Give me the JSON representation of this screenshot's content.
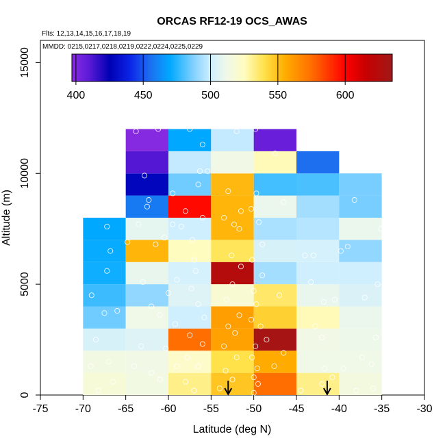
{
  "chart_data": {
    "type": "heatmap",
    "title": "ORCAS RF12-19 OCS_AWAS",
    "flights_label": "Flts: 12,13,14,15,16,17,18,19",
    "mmdd_label": "MMDD: 0215,0217,0218,0219,0222,0224,0225,0229",
    "xlabel": "Latitude (deg N)",
    "ylabel": "Altitude (m)",
    "xlim": [
      -75,
      -30
    ],
    "ylim": [
      0,
      16000
    ],
    "xticks": [
      -75,
      -70,
      -65,
      -60,
      -55,
      -50,
      -45,
      -40,
      -35,
      -30
    ],
    "yticks": [
      0,
      5000,
      10000,
      15000
    ],
    "lat_bins": [
      -70,
      -65,
      -60,
      -55,
      -50,
      -45,
      -40,
      -35
    ],
    "alt_bin_size": 1000,
    "colorbar": {
      "range": [
        397,
        635
      ],
      "ticks": [
        400,
        450,
        500,
        550,
        600
      ],
      "stops": [
        {
          "v": 397,
          "c": "#8a2be2"
        },
        {
          "v": 410,
          "c": "#5a1ad6"
        },
        {
          "v": 425,
          "c": "#0000b3"
        },
        {
          "v": 440,
          "c": "#0a24e6"
        },
        {
          "v": 455,
          "c": "#1e6ef0"
        },
        {
          "v": 470,
          "c": "#00a9ff"
        },
        {
          "v": 487,
          "c": "#7fd0ff"
        },
        {
          "v": 500,
          "c": "#cfefff"
        },
        {
          "v": 512,
          "c": "#f0f8e8"
        },
        {
          "v": 525,
          "c": "#fffcc0"
        },
        {
          "v": 540,
          "c": "#ffe14a"
        },
        {
          "v": 555,
          "c": "#ffae00"
        },
        {
          "v": 575,
          "c": "#ff6e00"
        },
        {
          "v": 600,
          "c": "#ff0000"
        },
        {
          "v": 615,
          "c": "#c80000"
        },
        {
          "v": 635,
          "c": "#a01818"
        }
      ]
    },
    "cells": [
      {
        "lat": -70,
        "alt": 0,
        "value": 518
      },
      {
        "lat": -70,
        "alt": 1000,
        "value": 514
      },
      {
        "lat": -70,
        "alt": 2000,
        "value": 503
      },
      {
        "lat": -70,
        "alt": 3000,
        "value": 485
      },
      {
        "lat": -70,
        "alt": 4000,
        "value": 478
      },
      {
        "lat": -70,
        "alt": 5000,
        "value": 472
      },
      {
        "lat": -70,
        "alt": 6000,
        "value": 471
      },
      {
        "lat": -70,
        "alt": 7000,
        "value": 470
      },
      {
        "lat": -65,
        "alt": 0,
        "value": 514
      },
      {
        "lat": -65,
        "alt": 1000,
        "value": 513
      },
      {
        "lat": -65,
        "alt": 2000,
        "value": 505
      },
      {
        "lat": -65,
        "alt": 3000,
        "value": 512
      },
      {
        "lat": -65,
        "alt": 4000,
        "value": 490
      },
      {
        "lat": -65,
        "alt": 5000,
        "value": 509
      },
      {
        "lat": -65,
        "alt": 6000,
        "value": 553
      },
      {
        "lat": -65,
        "alt": 7000,
        "value": 508
      },
      {
        "lat": -65,
        "alt": 8000,
        "value": 458
      },
      {
        "lat": -65,
        "alt": 9000,
        "value": 428
      },
      {
        "lat": -65,
        "alt": 10000,
        "value": 411
      },
      {
        "lat": -65,
        "alt": 11000,
        "value": 398
      },
      {
        "lat": -60,
        "alt": 0,
        "value": 532
      },
      {
        "lat": -60,
        "alt": 1000,
        "value": 522
      },
      {
        "lat": -60,
        "alt": 2000,
        "value": 575
      },
      {
        "lat": -60,
        "alt": 3000,
        "value": 500
      },
      {
        "lat": -60,
        "alt": 4000,
        "value": 505
      },
      {
        "lat": -60,
        "alt": 5000,
        "value": 502
      },
      {
        "lat": -60,
        "alt": 6000,
        "value": 525
      },
      {
        "lat": -60,
        "alt": 7000,
        "value": 500
      },
      {
        "lat": -60,
        "alt": 8000,
        "value": 598
      },
      {
        "lat": -60,
        "alt": 9000,
        "value": 485
      },
      {
        "lat": -60,
        "alt": 10000,
        "value": 498
      },
      {
        "lat": -60,
        "alt": 11000,
        "value": 470
      },
      {
        "lat": -55,
        "alt": 0,
        "value": 548
      },
      {
        "lat": -55,
        "alt": 1000,
        "value": 540
      },
      {
        "lat": -55,
        "alt": 2000,
        "value": 559
      },
      {
        "lat": -55,
        "alt": 3000,
        "value": 560
      },
      {
        "lat": -55,
        "alt": 4000,
        "value": 519
      },
      {
        "lat": -55,
        "alt": 5000,
        "value": 625
      },
      {
        "lat": -55,
        "alt": 6000,
        "value": 538
      },
      {
        "lat": -55,
        "alt": 7000,
        "value": 553
      },
      {
        "lat": -55,
        "alt": 8000,
        "value": 553
      },
      {
        "lat": -55,
        "alt": 9000,
        "value": 552
      },
      {
        "lat": -55,
        "alt": 10000,
        "value": 513
      },
      {
        "lat": -55,
        "alt": 11000,
        "value": 498
      },
      {
        "lat": -50,
        "alt": 0,
        "value": 575
      },
      {
        "lat": -50,
        "alt": 1000,
        "value": 556
      },
      {
        "lat": -50,
        "alt": 2000,
        "value": 632
      },
      {
        "lat": -50,
        "alt": 3000,
        "value": 545
      },
      {
        "lat": -50,
        "alt": 4000,
        "value": 536
      },
      {
        "lat": -50,
        "alt": 5000,
        "value": 493
      },
      {
        "lat": -50,
        "alt": 6000,
        "value": 503
      },
      {
        "lat": -50,
        "alt": 7000,
        "value": 494
      },
      {
        "lat": -50,
        "alt": 8000,
        "value": 510
      },
      {
        "lat": -50,
        "alt": 9000,
        "value": 479
      },
      {
        "lat": -50,
        "alt": 10000,
        "value": 526
      },
      {
        "lat": -50,
        "alt": 11000,
        "value": 406
      },
      {
        "lat": -45,
        "alt": 0,
        "value": 532
      },
      {
        "lat": -45,
        "alt": 1000,
        "value": 512
      },
      {
        "lat": -45,
        "alt": 2000,
        "value": 513
      },
      {
        "lat": -45,
        "alt": 3000,
        "value": 526
      },
      {
        "lat": -45,
        "alt": 4000,
        "value": 509
      },
      {
        "lat": -45,
        "alt": 5000,
        "value": 500
      },
      {
        "lat": -45,
        "alt": 6000,
        "value": 502
      },
      {
        "lat": -45,
        "alt": 7000,
        "value": 496
      },
      {
        "lat": -45,
        "alt": 8000,
        "value": 493
      },
      {
        "lat": -45,
        "alt": 9000,
        "value": 480
      },
      {
        "lat": -45,
        "alt": 10000,
        "value": 455
      },
      {
        "lat": -40,
        "alt": 0,
        "value": 515
      },
      {
        "lat": -40,
        "alt": 1000,
        "value": 512
      },
      {
        "lat": -40,
        "alt": 2000,
        "value": 511
      },
      {
        "lat": -40,
        "alt": 3000,
        "value": 510
      },
      {
        "lat": -40,
        "alt": 4000,
        "value": 504
      },
      {
        "lat": -40,
        "alt": 5000,
        "value": 500
      },
      {
        "lat": -40,
        "alt": 6000,
        "value": 490
      },
      {
        "lat": -40,
        "alt": 7000,
        "value": 510
      },
      {
        "lat": -40,
        "alt": 8000,
        "value": 486
      },
      {
        "lat": -40,
        "alt": 9000,
        "value": 486
      }
    ],
    "samples": [
      [
        -68.2,
        200
      ],
      [
        -66.5,
        600
      ],
      [
        -69.1,
        1300
      ],
      [
        -67.0,
        1500
      ],
      [
        -68.5,
        2500
      ],
      [
        -66.0,
        3800
      ],
      [
        -67.5,
        3700
      ],
      [
        -69.0,
        4500
      ],
      [
        -67.2,
        5600
      ],
      [
        -66.8,
        6500
      ],
      [
        -67.2,
        7600
      ],
      [
        -64.0,
        1300
      ],
      [
        -63.2,
        2200
      ],
      [
        -62.0,
        4000
      ],
      [
        -63.0,
        5100
      ],
      [
        -64.8,
        6900
      ],
      [
        -63.5,
        7700
      ],
      [
        -62.5,
        8500
      ],
      [
        -62.3,
        8800
      ],
      [
        -62.8,
        9900
      ],
      [
        -63.8,
        11900
      ],
      [
        -61.2,
        12000
      ],
      [
        -61.0,
        700
      ],
      [
        -62.0,
        1000
      ],
      [
        -59.0,
        1300
      ],
      [
        -60.3,
        2100
      ],
      [
        -59.2,
        3200
      ],
      [
        -61.0,
        3600
      ],
      [
        -60.0,
        4600
      ],
      [
        -59.0,
        5200
      ],
      [
        -61.5,
        6800
      ],
      [
        -60.5,
        7100
      ],
      [
        -58.5,
        7600
      ],
      [
        -59.5,
        7700
      ],
      [
        -58.0,
        8300
      ],
      [
        -59.5,
        9100
      ],
      [
        -57.5,
        12000
      ],
      [
        -58.0,
        600
      ],
      [
        -57.0,
        200
      ],
      [
        -56.5,
        1300
      ],
      [
        -57.8,
        1700
      ],
      [
        -56.0,
        2300
      ],
      [
        -57.5,
        2700
      ],
      [
        -55.8,
        3500
      ],
      [
        -56.5,
        4100
      ],
      [
        -57.3,
        4800
      ],
      [
        -56.8,
        5600
      ],
      [
        -57.0,
        6100
      ],
      [
        -57.2,
        7000
      ],
      [
        -56.0,
        8000
      ],
      [
        -56.5,
        9500
      ],
      [
        -56.3,
        10100
      ],
      [
        -55.4,
        10100
      ],
      [
        -56.0,
        11300
      ],
      [
        -54.0,
        300
      ],
      [
        -52.5,
        700
      ],
      [
        -53.3,
        1100
      ],
      [
        -52.0,
        1700
      ],
      [
        -53.5,
        2200
      ],
      [
        -52.2,
        2800
      ],
      [
        -53.0,
        3100
      ],
      [
        -51.7,
        3600
      ],
      [
        -53.2,
        4300
      ],
      [
        -52.5,
        5000
      ],
      [
        -51.5,
        5800
      ],
      [
        -52.6,
        6300
      ],
      [
        -51.7,
        7500
      ],
      [
        -52.3,
        7700
      ],
      [
        -53.5,
        8000
      ],
      [
        -51.5,
        8300
      ],
      [
        -53.0,
        9200
      ],
      [
        -52.0,
        11900
      ],
      [
        -50.0,
        100
      ],
      [
        -49.5,
        500
      ],
      [
        -50.0,
        800
      ],
      [
        -49.6,
        1200
      ],
      [
        -50.2,
        1700
      ],
      [
        -49.8,
        2200
      ],
      [
        -49.2,
        3100
      ],
      [
        -50.3,
        3400
      ],
      [
        -49.7,
        4100
      ],
      [
        -50.0,
        4700
      ],
      [
        -49.0,
        5400
      ],
      [
        -50.2,
        6100
      ],
      [
        -49.0,
        6800
      ],
      [
        -49.4,
        7800
      ],
      [
        -50.3,
        8400
      ],
      [
        -49.7,
        9100
      ],
      [
        -49.8,
        12000
      ],
      [
        -47.5,
        10900
      ],
      [
        -46.5,
        8700
      ],
      [
        -47.0,
        4500
      ],
      [
        -48.5,
        2500
      ],
      [
        -46.5,
        1900
      ],
      [
        -47.6,
        1300
      ],
      [
        -44.0,
        6300
      ],
      [
        -43.0,
        6300
      ],
      [
        -43.3,
        5100
      ],
      [
        -41.8,
        4200
      ],
      [
        -42.8,
        3100
      ],
      [
        -42.0,
        2600
      ],
      [
        -41.7,
        1200
      ],
      [
        -40.8,
        800
      ],
      [
        -40.5,
        4300
      ],
      [
        -39.5,
        1200
      ],
      [
        -39.0,
        6700
      ],
      [
        -39.8,
        6500
      ],
      [
        -38.2,
        8800
      ],
      [
        -37.0,
        4400
      ],
      [
        -37.3,
        1700
      ],
      [
        -36.2,
        1400
      ],
      [
        -35.7,
        2600
      ],
      [
        -35.5,
        5000
      ],
      [
        -35.1,
        7500
      ],
      [
        -34.7,
        9900
      ],
      [
        -36.0,
        300
      ],
      [
        -38.0,
        200
      ],
      [
        -44.5,
        200
      ],
      [
        -42.0,
        500
      ]
    ],
    "arrows_lat": [
      -53.0,
      -41.4
    ]
  }
}
